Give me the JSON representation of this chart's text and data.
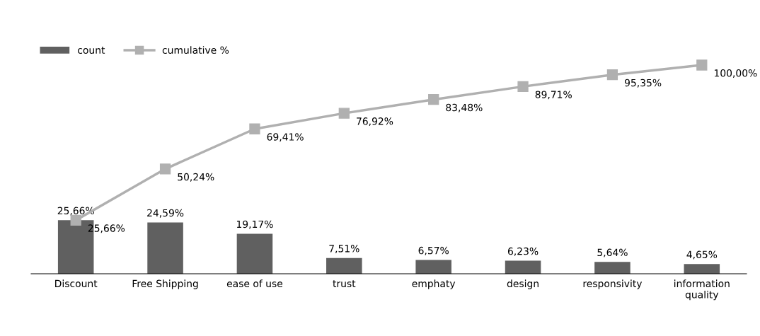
{
  "chart_data": {
    "type": "bar",
    "categories": [
      "Discount",
      "Free Shipping",
      "ease of use",
      "trust",
      "emphaty",
      "design",
      "responsivity",
      "information\nquality"
    ],
    "series": [
      {
        "name": "count",
        "color": "#606060",
        "values": [
          25.66,
          24.59,
          19.17,
          7.51,
          6.57,
          6.23,
          5.64,
          4.65
        ],
        "value_labels": [
          "25,66%",
          "24,59%",
          "19,17%",
          "7,51%",
          "6,57%",
          "6,23%",
          "5,64%",
          "4,65%"
        ]
      },
      {
        "name": "cumulative %",
        "type": "line",
        "color": "#b0b0b0",
        "marker": "square",
        "line_style": "solid",
        "values": [
          25.66,
          50.24,
          69.41,
          76.92,
          83.48,
          89.71,
          95.35,
          100.0
        ],
        "value_labels": [
          "25,66%",
          "50,24%",
          "69,41%",
          "76,92%",
          "83,48%",
          "89,71%",
          "95,35%",
          "100,00%"
        ]
      }
    ],
    "legend": "top left",
    "grid": false
  }
}
